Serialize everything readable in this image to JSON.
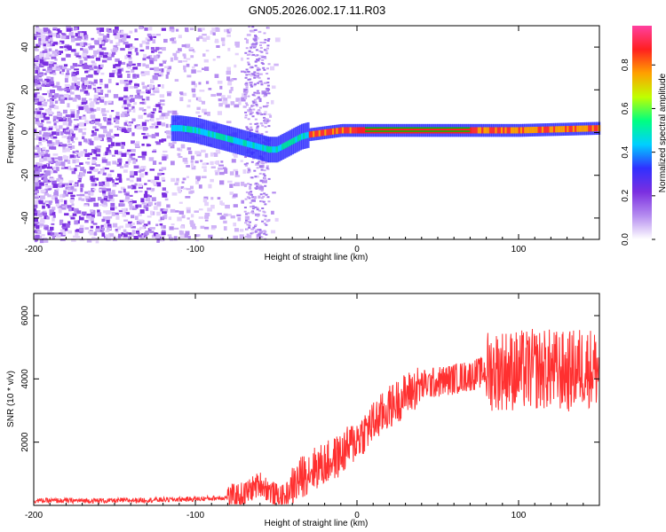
{
  "title": "GN05.2026.002.17.11.R03",
  "chart_data": [
    {
      "type": "heatmap",
      "xlabel": "Height of straight line (km)",
      "ylabel": "Frequency (Hz)",
      "xlim": [
        -200,
        150
      ],
      "ylim": [
        -50,
        50
      ],
      "xticks": [
        -200,
        -100,
        0,
        100
      ],
      "yticks": [
        -40,
        -20,
        0,
        20,
        40
      ],
      "colorbar": {
        "label": "Normalized spectral amplitude",
        "range": [
          0,
          1
        ],
        "ticks": [
          "0.0",
          "0.2",
          "0.4",
          "0.6",
          "0.8"
        ],
        "colors": [
          "#ffffff",
          "#b58cf0",
          "#7b2fe0",
          "#3030ff",
          "#00d0ff",
          "#00ff80",
          "#c0ff00",
          "#ffa000",
          "#ff2020",
          "#ff40a0"
        ]
      },
      "ridge": {
        "description_x": [
          -110,
          -100,
          -90,
          -80,
          -70,
          -60,
          -55,
          -50,
          -45,
          -40,
          -35,
          -30,
          -20,
          -10,
          0,
          10,
          50,
          100,
          150
        ],
        "description_y": [
          2,
          1,
          -1,
          -3,
          -5,
          -7,
          -8,
          -8,
          -6,
          -4,
          -2,
          -1,
          0,
          1,
          1,
          1,
          1,
          1,
          2
        ]
      }
    },
    {
      "type": "line",
      "xlabel": "Height of straight line (km)",
      "ylabel": "SNR (10 * v/v)",
      "xlim": [
        -200,
        150
      ],
      "ylim": [
        0,
        6700
      ],
      "xticks": [
        -200,
        -100,
        0,
        100
      ],
      "yticks": [
        2000,
        4000,
        6000
      ],
      "color": "#ff3030",
      "trend_x": [
        -200,
        -150,
        -100,
        -80,
        -70,
        -60,
        -50,
        -45,
        -40,
        -30,
        -20,
        -10,
        0,
        10,
        20,
        30,
        40,
        50,
        60,
        70,
        80,
        90,
        100,
        110,
        120,
        130,
        140,
        150
      ],
      "trend_y": [
        150,
        150,
        200,
        250,
        350,
        700,
        300,
        250,
        600,
        1100,
        1300,
        1600,
        2100,
        2600,
        3100,
        3500,
        3800,
        3900,
        4000,
        4100,
        4250,
        4300,
        4250,
        4300,
        4300,
        4200,
        4400,
        4300
      ]
    }
  ]
}
